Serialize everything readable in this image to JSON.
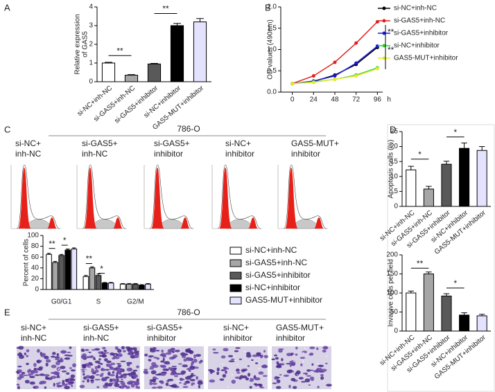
{
  "figure": {
    "panel_labels": [
      "A",
      "B",
      "C",
      "D",
      "E"
    ],
    "flow": {
      "title": "786-O",
      "groups": [
        [
          "si-NC+",
          "inh-NC"
        ],
        [
          "si-GAS5+",
          "inh-NC"
        ],
        [
          "si-GAS5+",
          "inhibitor"
        ],
        [
          "si-NC+",
          "inhibitor"
        ],
        [
          "GAS5-MUT+",
          "inhibitor"
        ]
      ]
    },
    "invasion": {
      "title": "786-O",
      "groups": [
        [
          "si-NC+",
          "inh-NC"
        ],
        [
          "si-GAS5+",
          "inh-NC"
        ],
        [
          "si-GAS5+",
          "inhibitor"
        ],
        [
          "si-NC+",
          "inhibitor"
        ],
        [
          "GAS5-MUT+",
          "inhibitor"
        ]
      ]
    }
  },
  "chart_data": [
    {
      "type": "bar",
      "y_label": [
        "Relative expression",
        "of GAS5"
      ],
      "categories": [
        "si-NC+inh-NC",
        "si-GAS5+inh-NC",
        "si-GAS5+inhibitor",
        "si-NC+inhibitor",
        "GAS5-MUT+inhibitor"
      ],
      "values": [
        1.0,
        0.35,
        0.95,
        3.0,
        3.2
      ],
      "errors": [
        0.04,
        0.03,
        0.03,
        0.12,
        0.18
      ],
      "colors": [
        "#ffffff",
        "#a6a6a6",
        "#595959",
        "#000000",
        "#e3e3ff"
      ],
      "ylim": [
        0,
        4
      ],
      "yticks": [
        0,
        1,
        2,
        3,
        4
      ],
      "annotations": [
        "**",
        "**"
      ]
    },
    {
      "type": "line",
      "y_label": "OD values (490nm)",
      "x_label": "h",
      "x": [
        0,
        24,
        48,
        72,
        96
      ],
      "xlim": [
        -13,
        102
      ],
      "xticks": [
        0,
        24,
        48,
        72,
        96
      ],
      "ylim": [
        0,
        2
      ],
      "yticks": [
        {
          "value": 0,
          "label": "0.0"
        },
        {
          "value": 0.5,
          "label": "0.5"
        },
        {
          "value": 1,
          "label": "1.0"
        },
        {
          "value": 1.5,
          "label": "1.5"
        },
        {
          "value": 2,
          "label": "2.0"
        }
      ],
      "series": [
        {
          "name": "si-NC+inh-NC",
          "color": "#000000",
          "values": [
            0.2,
            0.25,
            0.4,
            0.65,
            1.05
          ]
        },
        {
          "name": "si-GAS5+inh-NC",
          "color": "#e0201b",
          "values": [
            0.2,
            0.38,
            0.7,
            1.15,
            1.65
          ]
        },
        {
          "name": "si-GAS5+inhibitor",
          "color": "#1a1ad6",
          "values": [
            0.2,
            0.26,
            0.38,
            0.68,
            1.08
          ]
        },
        {
          "name": "si-NC+inhibitor",
          "color": "#2bd22b",
          "values": [
            0.2,
            0.24,
            0.3,
            0.4,
            0.57
          ]
        },
        {
          "name": "GAS5-MUT+inhibitor",
          "color": "#e8e82a",
          "values": [
            0.2,
            0.23,
            0.3,
            0.38,
            0.55
          ]
        }
      ],
      "annotations": [
        "**",
        "**"
      ]
    },
    {
      "type": "bar",
      "y_label": "Percent of cells",
      "categories": [
        "G0/G1",
        "S",
        "G2/M"
      ],
      "series": [
        {
          "name": "si-NC+inh-NC",
          "color": "#ffffff",
          "values": [
            65,
            24,
            10
          ],
          "errors": [
            2,
            2,
            1
          ]
        },
        {
          "name": "si-GAS5+inh-NC",
          "color": "#a6a6a6",
          "values": [
            50,
            40,
            10
          ],
          "errors": [
            2,
            2,
            1
          ]
        },
        {
          "name": "si-GAS5+inhibitor",
          "color": "#595959",
          "values": [
            63,
            26,
            10
          ],
          "errors": [
            2,
            3,
            1
          ]
        },
        {
          "name": "si-NC+inhibitor",
          "color": "#000000",
          "values": [
            73,
            12,
            8
          ],
          "errors": [
            2,
            1,
            1
          ]
        },
        {
          "name": "GAS5-MUT+inhibitor",
          "color": "#e3e3ff",
          "values": [
            75,
            12,
            10
          ],
          "errors": [
            2,
            1,
            1
          ]
        }
      ],
      "ylim": [
        0,
        100
      ],
      "yticks": [
        0,
        20,
        40,
        60,
        80,
        100
      ],
      "annotations": [
        "**",
        "*",
        "**",
        "*"
      ]
    },
    {
      "type": "bar",
      "y_label": "Apoptosis cells (%)",
      "categories": [
        "si-NC+inh-NC",
        "si-GAS5+inh-NC",
        "si-GAS5+inhibitor",
        "si-NC+inhibitor",
        "GAS5-MUT+inhibitor"
      ],
      "values": [
        12.2,
        5.8,
        14.1,
        19.4,
        18.7
      ],
      "errors": [
        1.2,
        0.9,
        1.0,
        1.8,
        1.3
      ],
      "colors": [
        "#ffffff",
        "#a6a6a6",
        "#595959",
        "#000000",
        "#e3e3ff"
      ],
      "ylim": [
        0,
        25
      ],
      "yticks": [
        0,
        5,
        10,
        15,
        20,
        25
      ],
      "annotations": [
        "*",
        "*"
      ]
    },
    {
      "type": "bar",
      "y_label": "Invasive cells per field",
      "categories": [
        "si-NC+inh-NC",
        "si-GAS5+inh-NC",
        "si-GAS5+inhibitor",
        "si-NC+inhibitor",
        "GAS5-MUT+inhibitor"
      ],
      "values": [
        100,
        150,
        92,
        42,
        40
      ],
      "errors": [
        5,
        5,
        6,
        6,
        4
      ],
      "colors": [
        "#ffffff",
        "#a6a6a6",
        "#595959",
        "#000000",
        "#e3e3ff"
      ],
      "ylim": [
        0,
        200
      ],
      "yticks": [
        0,
        50,
        100,
        150,
        200
      ],
      "annotations": [
        "**",
        "*"
      ]
    }
  ]
}
